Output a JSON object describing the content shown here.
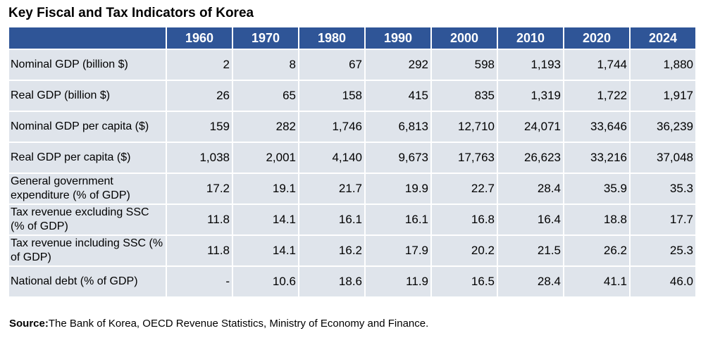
{
  "title": "Key Fiscal and Tax Indicators of Korea",
  "table": {
    "columns": [
      "1960",
      "1970",
      "1980",
      "1990",
      "2000",
      "2010",
      "2020",
      "2024"
    ],
    "rows": [
      {
        "label": "Nominal GDP (billion $)",
        "cells": [
          "2",
          "8",
          "67",
          "292",
          "598",
          "1,193",
          "1,744",
          "1,880"
        ]
      },
      {
        "label": "Real GDP (billion $)",
        "cells": [
          "26",
          "65",
          "158",
          "415",
          "835",
          "1,319",
          "1,722",
          "1,917"
        ]
      },
      {
        "label": "Nominal GDP per capita ($)",
        "cells": [
          "159",
          "282",
          "1,746",
          "6,813",
          "12,710",
          "24,071",
          "33,646",
          "36,239"
        ]
      },
      {
        "label": "Real GDP per capita ($)",
        "cells": [
          "1,038",
          "2,001",
          "4,140",
          "9,673",
          "17,763",
          "26,623",
          "33,216",
          "37,048"
        ]
      },
      {
        "label": "General government expenditure (% of GDP)",
        "cells": [
          "17.2",
          "19.1",
          "21.7",
          "19.9",
          "22.7",
          "28.4",
          "35.9",
          "35.3"
        ]
      },
      {
        "label": "Tax revenue excluding SSC (% of GDP)",
        "cells": [
          "11.8",
          "14.1",
          "16.1",
          "16.1",
          "16.8",
          "16.4",
          "18.8",
          "17.7"
        ]
      },
      {
        "label": "Tax revenue including SSC (% of GDP)",
        "cells": [
          "11.8",
          "14.1",
          "16.2",
          "17.9",
          "20.2",
          "21.5",
          "26.2",
          "25.3"
        ]
      },
      {
        "label": "National debt (% of GDP)",
        "cells": [
          "-",
          "10.6",
          "18.6",
          "11.9",
          "16.5",
          "28.4",
          "41.1",
          "46.0"
        ]
      }
    ]
  },
  "source": {
    "label": "Source:",
    "text": "The Bank of Korea, OECD Revenue Statistics, Ministry of Economy and Finance."
  }
}
